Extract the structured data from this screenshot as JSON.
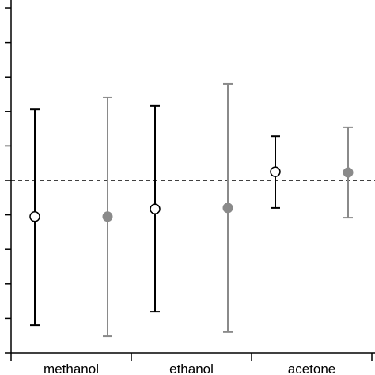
{
  "chart_data": {
    "type": "errorbar",
    "categories": [
      "methanol",
      "ethanol",
      "acetone"
    ],
    "series": [
      {
        "color": "#000000",
        "marker": "open",
        "values": [
          -1.05,
          -0.83,
          0.25
        ],
        "low": [
          -4.2,
          -3.81,
          -0.8
        ],
        "high": [
          2.06,
          2.16,
          1.28
        ]
      },
      {
        "color": "#8a8a8a",
        "marker": "filled",
        "values": [
          -1.05,
          -0.8,
          0.23
        ],
        "low": [
          -4.52,
          -4.4,
          -1.08
        ],
        "high": [
          2.41,
          2.8,
          1.54
        ]
      }
    ],
    "reference_line": 0,
    "ylim": [
      -5,
      5.23
    ],
    "yticks": [
      -5,
      -4,
      -3,
      -2,
      -1,
      0,
      1,
      2,
      3,
      4,
      5
    ]
  }
}
